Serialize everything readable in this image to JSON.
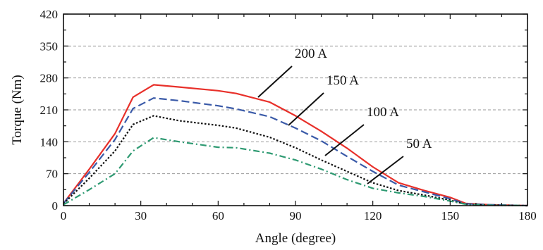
{
  "chart_data": {
    "type": "line",
    "title": "",
    "xlabel": "Angle (degree)",
    "ylabel": "Torque (Nm)",
    "xlim": [
      0,
      180
    ],
    "ylim": [
      0,
      420
    ],
    "xticks": [
      0,
      30,
      60,
      90,
      120,
      150,
      180
    ],
    "yticks": [
      0,
      70,
      140,
      210,
      280,
      350,
      420
    ],
    "grid": "horizontal dashed",
    "legend": "none (inline leader-line labels)",
    "series": [
      {
        "name": "200 A",
        "color": "#e8302a",
        "dash": "solid",
        "x": [
          0,
          10,
          20,
          27,
          35,
          45,
          60,
          67,
          80,
          90,
          100,
          110,
          120,
          130,
          140,
          150,
          156,
          165,
          180
        ],
        "y": [
          5,
          80,
          158,
          238,
          265,
          260,
          252,
          246,
          227,
          197,
          163,
          126,
          85,
          50,
          33,
          18,
          5,
          2,
          0
        ]
      },
      {
        "name": "150 A",
        "color": "#3a5aa8",
        "dash": "long-dash",
        "x": [
          0,
          10,
          20,
          27,
          35,
          45,
          60,
          67,
          80,
          90,
          100,
          110,
          120,
          130,
          140,
          150,
          156,
          165,
          180
        ],
        "y": [
          5,
          73,
          145,
          213,
          236,
          230,
          219,
          212,
          195,
          170,
          142,
          108,
          75,
          45,
          30,
          15,
          4,
          2,
          0
        ]
      },
      {
        "name": "100 A",
        "color": "#111111",
        "dash": "dotted",
        "x": [
          0,
          10,
          20,
          27,
          35,
          45,
          60,
          67,
          80,
          90,
          100,
          110,
          120,
          130,
          140,
          150,
          156,
          165,
          180
        ],
        "y": [
          4,
          60,
          120,
          178,
          197,
          186,
          176,
          170,
          150,
          127,
          100,
          75,
          50,
          33,
          23,
          12,
          3,
          1,
          0
        ]
      },
      {
        "name": "50 A",
        "color": "#2e9a72",
        "dash": "dash-dot",
        "x": [
          0,
          10,
          20,
          27,
          35,
          45,
          60,
          67,
          80,
          90,
          100,
          110,
          120,
          130,
          140,
          150,
          156,
          165,
          180
        ],
        "y": [
          2,
          35,
          70,
          120,
          149,
          140,
          128,
          127,
          115,
          100,
          80,
          57,
          38,
          28,
          20,
          10,
          3,
          1,
          0
        ]
      }
    ]
  }
}
